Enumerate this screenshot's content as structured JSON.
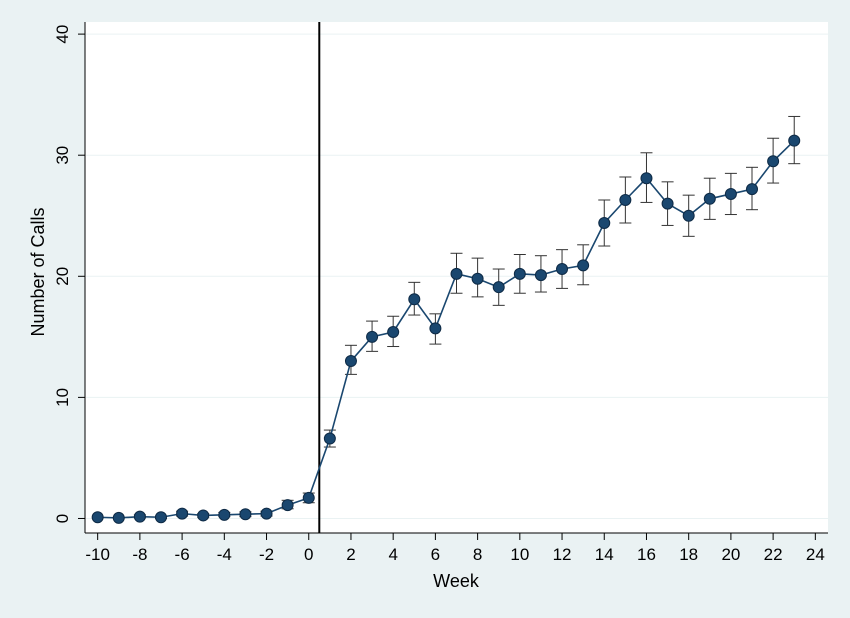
{
  "chart_data": {
    "type": "line",
    "xlabel": "Week",
    "ylabel": "Number of Calls",
    "xlim": [
      -10.6,
      24.6
    ],
    "ylim": [
      -1.2,
      41
    ],
    "xticks": [
      -10,
      -8,
      -6,
      -4,
      -2,
      0,
      2,
      4,
      6,
      8,
      10,
      12,
      14,
      16,
      18,
      20,
      22,
      24
    ],
    "yticks": [
      0,
      10,
      20,
      30,
      40
    ],
    "grid": "horizontal",
    "legend": "none",
    "reference_line_x": 0.5,
    "series": [
      {
        "x": [
          -10,
          -9,
          -8,
          -7,
          -6,
          -5,
          -4,
          -3,
          -2,
          -1,
          0,
          1,
          2,
          3,
          4,
          5,
          6,
          7,
          8,
          9,
          10,
          11,
          12,
          13,
          14,
          15,
          16,
          17,
          18,
          19,
          20,
          21,
          22,
          23
        ],
        "values": [
          0.1,
          0.05,
          0.15,
          0.1,
          0.4,
          0.25,
          0.3,
          0.35,
          0.4,
          1.1,
          1.7,
          6.6,
          13.0,
          15.0,
          15.4,
          18.1,
          15.7,
          20.2,
          19.8,
          19.1,
          20.2,
          20.1,
          20.6,
          20.9,
          24.4,
          26.3,
          28.1,
          26.0,
          25.0,
          26.4,
          26.8,
          27.2,
          29.5,
          31.2
        ],
        "lower": [
          0.05,
          0.0,
          0.05,
          0.0,
          0.2,
          0.1,
          0.15,
          0.15,
          0.2,
          0.8,
          1.3,
          5.9,
          11.9,
          13.8,
          14.2,
          16.8,
          14.4,
          18.6,
          18.3,
          17.6,
          18.6,
          18.7,
          19.0,
          19.3,
          22.5,
          24.4,
          26.1,
          24.2,
          23.3,
          24.7,
          25.1,
          25.5,
          27.7,
          29.3
        ],
        "upper": [
          0.2,
          0.15,
          0.3,
          0.2,
          0.6,
          0.4,
          0.5,
          0.55,
          0.6,
          1.5,
          2.1,
          7.3,
          14.3,
          16.3,
          16.7,
          19.5,
          16.9,
          21.9,
          21.5,
          20.6,
          21.8,
          21.7,
          22.2,
          22.6,
          26.3,
          28.2,
          30.2,
          27.8,
          26.7,
          28.1,
          28.5,
          29.0,
          31.4,
          33.2
        ]
      }
    ],
    "colors": {
      "line": "#1a476f",
      "marker": "#1a476f",
      "error_bar": "#333333",
      "reference_line": "#000000",
      "grid": "#eaf2f3"
    }
  }
}
